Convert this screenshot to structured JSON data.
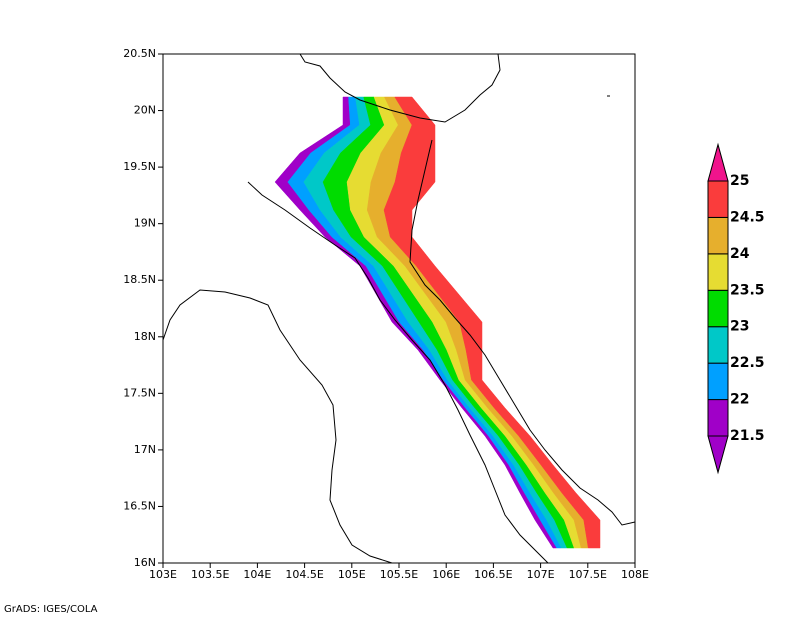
{
  "map": {
    "xticks": [
      {
        "value": 103,
        "label": "103E"
      },
      {
        "value": 103.5,
        "label": "103.5E"
      },
      {
        "value": 104,
        "label": "104E"
      },
      {
        "value": 104.5,
        "label": "104.5E"
      },
      {
        "value": 105,
        "label": "105E"
      },
      {
        "value": 105.5,
        "label": "105.5E"
      },
      {
        "value": 106,
        "label": "106E"
      },
      {
        "value": 106.5,
        "label": "106.5E"
      },
      {
        "value": 107,
        "label": "107E"
      },
      {
        "value": 107.5,
        "label": "107.5E"
      },
      {
        "value": 108,
        "label": "108E"
      }
    ],
    "yticks": [
      {
        "value": 16,
        "label": "16N"
      },
      {
        "value": 16.5,
        "label": "16.5N"
      },
      {
        "value": 17,
        "label": "17N"
      },
      {
        "value": 17.5,
        "label": "17.5N"
      },
      {
        "value": 18,
        "label": "18N"
      },
      {
        "value": 18.5,
        "label": "18.5N"
      },
      {
        "value": 19,
        "label": "19N"
      },
      {
        "value": 19.5,
        "label": "19.5N"
      },
      {
        "value": 20,
        "label": "20N"
      },
      {
        "value": 20.5,
        "label": "20.5N"
      }
    ],
    "xlim": [
      103,
      108
    ],
    "ylim": [
      16,
      20.5
    ],
    "colorbar": {
      "levels": [
        21.5,
        22,
        22.5,
        23,
        23.5,
        24,
        24.5,
        25
      ],
      "colors": [
        "#a000c8",
        "#a000c8",
        "#00a0ff",
        "#00c8c8",
        "#00dc00",
        "#e6dc32",
        "#e6af2d",
        "#fa3c3c",
        "#f0148c"
      ]
    },
    "credit": "GrADS: IGES/COLA"
  }
}
